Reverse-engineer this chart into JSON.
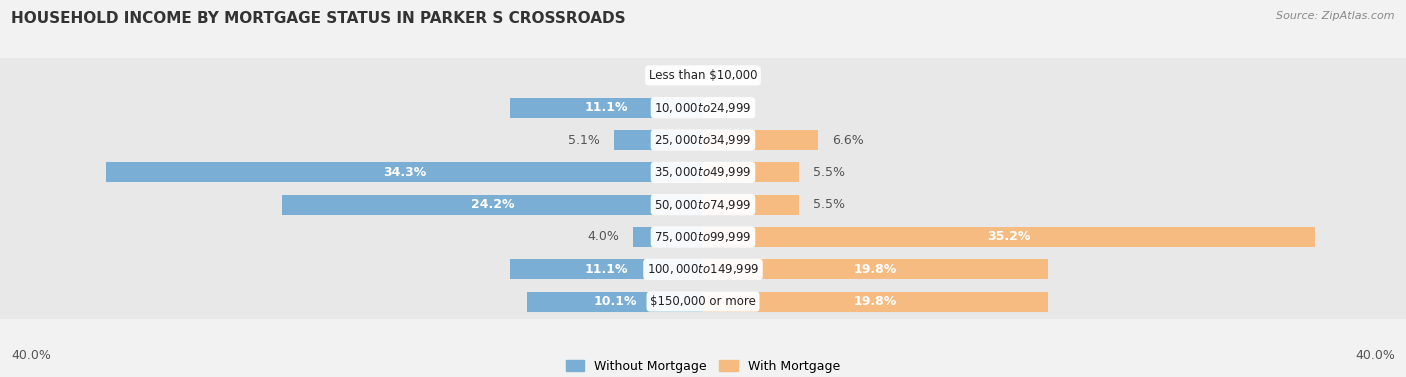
{
  "title": "HOUSEHOLD INCOME BY MORTGAGE STATUS IN PARKER S CROSSROADS",
  "source": "Source: ZipAtlas.com",
  "categories": [
    "Less than $10,000",
    "$10,000 to $24,999",
    "$25,000 to $34,999",
    "$35,000 to $49,999",
    "$50,000 to $74,999",
    "$75,000 to $99,999",
    "$100,000 to $149,999",
    "$150,000 or more"
  ],
  "without_mortgage": [
    0.0,
    11.1,
    5.1,
    34.3,
    24.2,
    4.0,
    11.1,
    10.1
  ],
  "with_mortgage": [
    0.0,
    0.0,
    6.6,
    5.5,
    5.5,
    35.2,
    19.8,
    19.8
  ],
  "color_without": "#7aaed4",
  "color_with": "#f5bb80",
  "xlim": 40.0,
  "axis_label_left": "40.0%",
  "axis_label_right": "40.0%",
  "background_color": "#f2f2f2",
  "row_bg_color": "#e8e8e8",
  "title_fontsize": 11,
  "source_fontsize": 8,
  "label_fontsize": 9,
  "cat_fontsize": 8.5,
  "bar_height": 0.62
}
